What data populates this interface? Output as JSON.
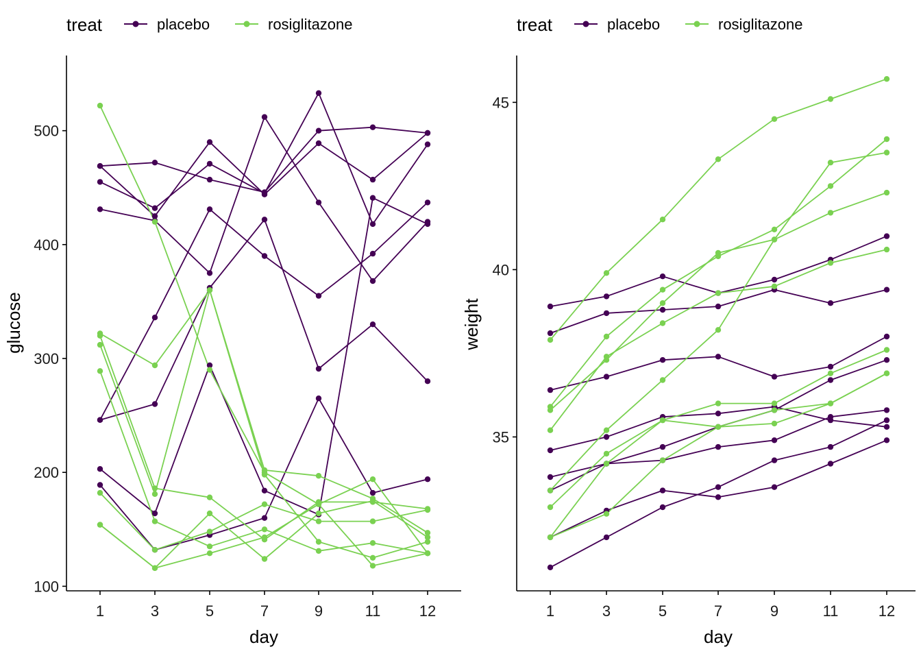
{
  "colors": {
    "placebo": "#440154",
    "rosiglitazone": "#7AD151"
  },
  "chart_data": [
    {
      "type": "line",
      "xlabel": "day",
      "ylabel": "glucose",
      "x": [
        1,
        3,
        5,
        7,
        9,
        11,
        12
      ],
      "xticks": [
        "1",
        "3",
        "5",
        "7",
        "9",
        "11",
        "12"
      ],
      "yticks": [
        100,
        200,
        300,
        400,
        500
      ],
      "ylim": [
        96,
        566
      ],
      "grid": false,
      "legend": {
        "title": "treat",
        "placement": "top-left",
        "entries": [
          "placebo",
          "rosiglitazone"
        ]
      },
      "series": [
        {
          "name": "placebo",
          "values": [
            469,
            472,
            457,
            446,
            500,
            503,
            498
          ]
        },
        {
          "name": "placebo",
          "values": [
            469,
            425,
            490,
            444,
            489,
            457,
            498
          ]
        },
        {
          "name": "placebo",
          "values": [
            455,
            432,
            471,
            445,
            533,
            418,
            488
          ]
        },
        {
          "name": "placebo",
          "values": [
            431,
            421,
            375,
            512,
            437,
            368,
            420
          ]
        },
        {
          "name": "placebo",
          "values": [
            246,
            336,
            431,
            390,
            355,
            392,
            437
          ]
        },
        {
          "name": "placebo",
          "values": [
            246,
            260,
            362,
            422,
            291,
            330,
            280
          ]
        },
        {
          "name": "placebo",
          "values": [
            203,
            164,
            294,
            184,
            163,
            441,
            418
          ]
        },
        {
          "name": "placebo",
          "values": [
            189,
            132,
            145,
            160,
            265,
            182,
            194
          ]
        },
        {
          "name": "rosiglitazone",
          "values": [
            522,
            420,
            290,
            200,
            172,
            194,
            129
          ]
        },
        {
          "name": "rosiglitazone",
          "values": [
            322,
            294,
            360,
            202,
            197,
            177,
            147
          ]
        },
        {
          "name": "rosiglitazone",
          "values": [
            320,
            186,
            178,
            141,
            174,
            174,
            168
          ]
        },
        {
          "name": "rosiglitazone",
          "values": [
            312,
            181,
            360,
            198,
            139,
            125,
            139
          ]
        },
        {
          "name": "rosiglitazone",
          "values": [
            289,
            157,
            135,
            150,
            131,
            138,
            129
          ]
        },
        {
          "name": "rosiglitazone",
          "values": [
            182,
            132,
            148,
            172,
            157,
            157,
            167
          ]
        },
        {
          "name": "rosiglitazone",
          "values": [
            154,
            116,
            164,
            124,
            164,
            175,
            143
          ]
        },
        {
          "name": "rosiglitazone",
          "values": [
            154,
            116,
            129,
            143,
            172,
            118,
            129
          ]
        }
      ]
    },
    {
      "type": "line",
      "xlabel": "day",
      "ylabel": "weight",
      "x": [
        1,
        3,
        5,
        7,
        9,
        11,
        12
      ],
      "xticks": [
        "1",
        "3",
        "5",
        "7",
        "9",
        "11",
        "12"
      ],
      "yticks": [
        35,
        40,
        45
      ],
      "ylim": [
        30.4,
        46.4
      ],
      "grid": false,
      "legend": {
        "title": "treat",
        "placement": "top-left",
        "entries": [
          "placebo",
          "rosiglitazone"
        ]
      },
      "series": [
        {
          "name": "placebo",
          "values": [
            38.9,
            39.2,
            39.8,
            39.3,
            39.7,
            40.3,
            41.0
          ]
        },
        {
          "name": "placebo",
          "values": [
            38.1,
            38.7,
            38.8,
            38.9,
            39.4,
            39.0,
            39.4
          ]
        },
        {
          "name": "placebo",
          "values": [
            36.4,
            36.8,
            37.3,
            37.4,
            36.8,
            37.1,
            38.0
          ]
        },
        {
          "name": "placebo",
          "values": [
            34.6,
            35.0,
            35.6,
            35.7,
            35.9,
            35.5,
            35.3
          ]
        },
        {
          "name": "placebo",
          "values": [
            33.8,
            34.2,
            34.7,
            35.3,
            35.8,
            36.7,
            37.3
          ]
        },
        {
          "name": "placebo",
          "values": [
            33.4,
            34.2,
            34.3,
            34.7,
            34.9,
            35.6,
            35.8
          ]
        },
        {
          "name": "placebo",
          "values": [
            32.0,
            32.8,
            33.4,
            33.2,
            33.5,
            34.2,
            34.9
          ]
        },
        {
          "name": "placebo",
          "values": [
            31.1,
            32.0,
            32.9,
            33.5,
            34.3,
            34.7,
            35.5
          ]
        },
        {
          "name": "rosiglitazone",
          "values": [
            37.9,
            39.9,
            41.5,
            43.3,
            44.5,
            45.1,
            45.7
          ]
        },
        {
          "name": "rosiglitazone",
          "values": [
            35.9,
            38.0,
            39.4,
            40.4,
            41.2,
            42.5,
            43.9
          ]
        },
        {
          "name": "rosiglitazone",
          "values": [
            35.8,
            37.3,
            39.0,
            40.5,
            40.9,
            41.7,
            42.3
          ]
        },
        {
          "name": "rosiglitazone",
          "values": [
            35.2,
            37.4,
            38.4,
            39.3,
            39.5,
            40.2,
            40.6
          ]
        },
        {
          "name": "rosiglitazone",
          "values": [
            33.4,
            35.2,
            36.7,
            38.2,
            40.9,
            43.2,
            43.5
          ]
        },
        {
          "name": "rosiglitazone",
          "values": [
            32.9,
            34.5,
            35.5,
            36.0,
            36.0,
            36.9,
            37.6
          ]
        },
        {
          "name": "rosiglitazone",
          "values": [
            32.0,
            32.7,
            34.3,
            35.3,
            35.4,
            36.0,
            36.9
          ]
        },
        {
          "name": "rosiglitazone",
          "values": [
            32.0,
            34.2,
            35.5,
            35.3,
            35.8,
            36.0,
            36.9
          ]
        }
      ]
    }
  ]
}
